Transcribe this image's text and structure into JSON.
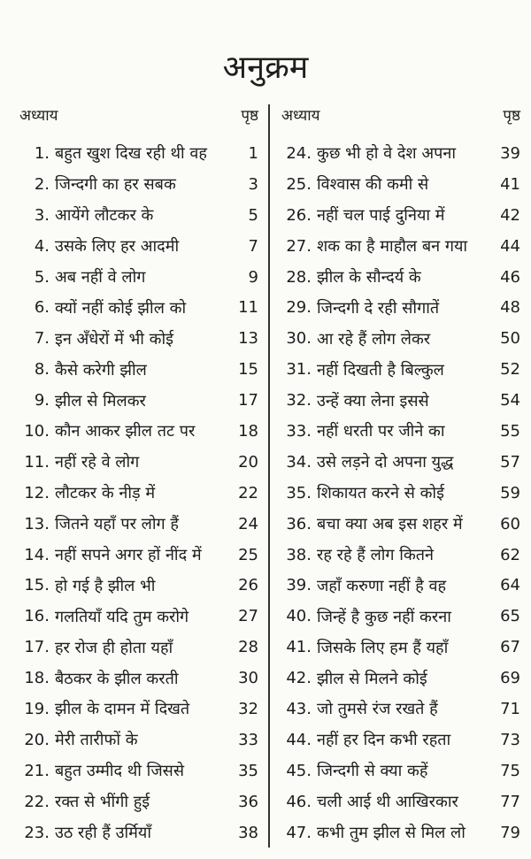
{
  "title": "अनुक्रम",
  "header": {
    "chapter": "अध्याय",
    "page": "पृष्ठ"
  },
  "left": [
    {
      "n": "1.",
      "t": "बहुत खुश दिख रही थी वह",
      "p": "1"
    },
    {
      "n": "2.",
      "t": "जिन्दगी का हर सबक",
      "p": "3"
    },
    {
      "n": "3.",
      "t": "आयेंगे लौटकर के",
      "p": "5"
    },
    {
      "n": "4.",
      "t": "उसके लिए हर आदमी",
      "p": "7"
    },
    {
      "n": "5.",
      "t": "अब नहीं वे लोग",
      "p": "9"
    },
    {
      "n": "6.",
      "t": "क्यों नहीं कोई झील को",
      "p": "11"
    },
    {
      "n": "7.",
      "t": "इन अँधेरों में भी कोई",
      "p": "13"
    },
    {
      "n": "8.",
      "t": "कैसे करेगी झील",
      "p": "15"
    },
    {
      "n": "9.",
      "t": "झील से मिलकर",
      "p": "17"
    },
    {
      "n": "10.",
      "t": "कौन आकर झील तट पर",
      "p": "18"
    },
    {
      "n": "11.",
      "t": "नहीं रहे वे लोग",
      "p": "20"
    },
    {
      "n": "12.",
      "t": "लौटकर के नीड़ में",
      "p": "22"
    },
    {
      "n": "13.",
      "t": "जितने यहाँ पर लोग हैं",
      "p": "24"
    },
    {
      "n": "14.",
      "t": "नहीं सपने अगर हों नींद में",
      "p": "25"
    },
    {
      "n": "15.",
      "t": "हो गई है झील भी",
      "p": "26"
    },
    {
      "n": "16.",
      "t": "गलतियाँ यदि तुम करोगे",
      "p": "27"
    },
    {
      "n": "17.",
      "t": "हर रोज ही होता यहाँ",
      "p": "28"
    },
    {
      "n": "18.",
      "t": "बैठकर के झील करती",
      "p": "30"
    },
    {
      "n": "19.",
      "t": "झील के दामन में दिखते",
      "p": "32"
    },
    {
      "n": "20.",
      "t": "मेरी तारीफों के",
      "p": "33"
    },
    {
      "n": "21.",
      "t": "बहुत उम्मीद थी जिससे",
      "p": "35"
    },
    {
      "n": "22.",
      "t": "रक्त से भींगी हुई",
      "p": "36"
    },
    {
      "n": "23.",
      "t": "उठ रही हैं उर्मियाँ",
      "p": "38"
    }
  ],
  "right": [
    {
      "n": "24.",
      "t": "कुछ भी हो वे देश अपना",
      "p": "39"
    },
    {
      "n": "25.",
      "t": "विश्वास की कमी से",
      "p": "41"
    },
    {
      "n": "26.",
      "t": "नहीं चल पाई दुनिया में",
      "p": "42"
    },
    {
      "n": "27.",
      "t": "शक का है माहौल बन गया",
      "p": "44"
    },
    {
      "n": "28.",
      "t": "झील के सौन्दर्य के",
      "p": "46"
    },
    {
      "n": "29.",
      "t": "जिन्दगी दे रही सौगातें",
      "p": "48"
    },
    {
      "n": "30.",
      "t": "आ रहे हैं लोग लेकर",
      "p": "50"
    },
    {
      "n": "31.",
      "t": "नहीं दिखती है बिल्कुल",
      "p": "52"
    },
    {
      "n": "32.",
      "t": "उन्हें क्या लेना इससे",
      "p": "54"
    },
    {
      "n": "33.",
      "t": "नहीं धरती पर जीने का",
      "p": "55"
    },
    {
      "n": "34.",
      "t": "उसे लड़ने दो अपना युद्ध",
      "p": "57"
    },
    {
      "n": "35.",
      "t": "शिकायत करने से कोई",
      "p": "59"
    },
    {
      "n": "36.",
      "t": "बचा क्या अब इस शहर में",
      "p": "60"
    },
    {
      "n": "38.",
      "t": "रह रहे हैं लोग कितने",
      "p": "62"
    },
    {
      "n": "39.",
      "t": "जहाँ करुणा नहीं है वह",
      "p": "64"
    },
    {
      "n": "40.",
      "t": "जिन्हें है कुछ नहीं करना",
      "p": "65"
    },
    {
      "n": "41.",
      "t": "जिसके लिए हम हैं यहाँ",
      "p": "67"
    },
    {
      "n": "42.",
      "t": "झील से मिलने कोई",
      "p": "69"
    },
    {
      "n": "43.",
      "t": "जो तुमसे रंज रखते हैं",
      "p": "71"
    },
    {
      "n": "44.",
      "t": "नहीं हर दिन कभी रहता",
      "p": "73"
    },
    {
      "n": "45.",
      "t": "जिन्दगी से क्या कहें",
      "p": "75"
    },
    {
      "n": "46.",
      "t": "चली आई थी आखिरकार",
      "p": "77"
    },
    {
      "n": "47.",
      "t": "कभी तुम झील से मिल लो",
      "p": "79"
    }
  ]
}
